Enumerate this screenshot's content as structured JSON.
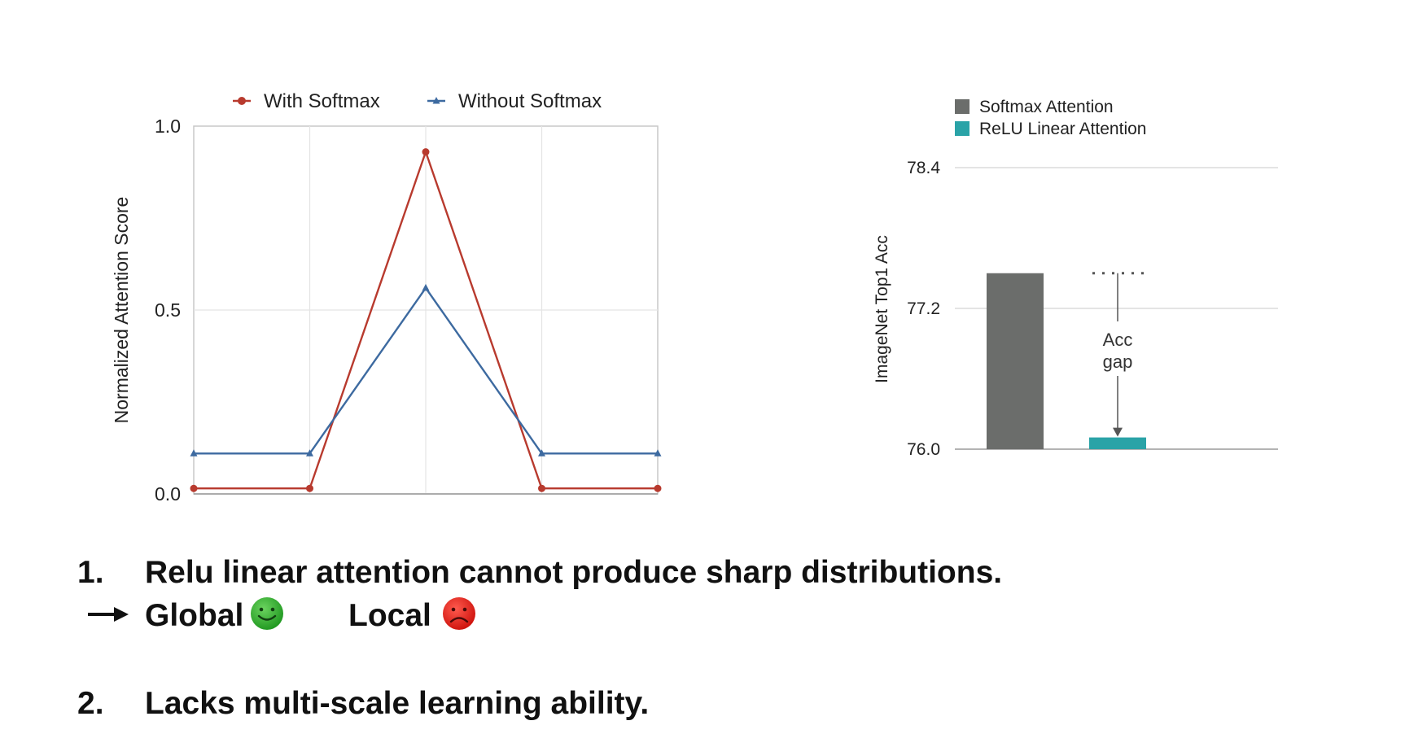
{
  "chart_data": [
    {
      "type": "line",
      "xlabel": "",
      "ylabel": "Normalized Attention Score",
      "ylim": [
        0.0,
        1.0
      ],
      "yticks": [
        "0.0",
        "0.5",
        "1.0"
      ],
      "x": [
        0,
        1,
        2,
        3,
        4
      ],
      "series": [
        {
          "name": "With Softmax",
          "color": "#b83a2e",
          "marker": "circle",
          "values": [
            0.015,
            0.015,
            0.93,
            0.015,
            0.015
          ]
        },
        {
          "name": "Without Softmax",
          "color": "#3d6aa0",
          "marker": "triangle",
          "values": [
            0.11,
            0.11,
            0.56,
            0.11,
            0.11
          ]
        }
      ],
      "grid": true,
      "legend": "top"
    },
    {
      "type": "bar",
      "categories": [
        "Softmax Attention",
        "ReLU Linear Attention"
      ],
      "values": [
        77.5,
        76.1
      ],
      "colors": [
        "#6b6d6b",
        "#2aa3a7"
      ],
      "ylabel": "ImageNet Top1 Acc",
      "ylim": [
        76.0,
        78.4
      ],
      "yticks": [
        "76.0",
        "77.2",
        "78.4"
      ],
      "annotation": "Acc\ngap",
      "grid": true,
      "legend": "top-left"
    }
  ],
  "bullets": [
    {
      "number": "1.",
      "text": "Relu linear attention cannot produce sharp distributions."
    },
    {
      "number": "2.",
      "text": "Lacks multi-scale learning ability."
    }
  ],
  "arrow_line": {
    "global_label": "Global",
    "global_icon": "happy-face-icon",
    "global_color": "#2fa52b",
    "local_label": "Local",
    "local_icon": "sad-face-icon",
    "local_color": "#e0241e"
  }
}
